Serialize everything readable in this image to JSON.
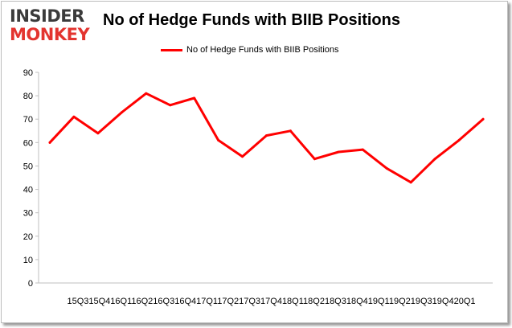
{
  "logo": {
    "line1": "INSIDER",
    "line2": "MONKEY"
  },
  "chart_data": {
    "type": "line",
    "title": "No of Hedge Funds with BIIB Positions",
    "xlabel": "",
    "ylabel": "",
    "legend": "top-center",
    "grid": false,
    "ylim": [
      0,
      90
    ],
    "yticks": [
      0,
      10,
      20,
      30,
      40,
      50,
      60,
      70,
      80,
      90
    ],
    "x_tick_text": "15Q315Q416Q116Q216Q316Q417Q117Q217Q317Q418Q118Q218Q318Q419Q119Q219Q319Q420Q1",
    "categories": [
      "15Q3",
      "15Q4",
      "16Q1",
      "16Q2",
      "16Q3",
      "16Q4",
      "17Q1",
      "17Q2",
      "17Q3",
      "17Q4",
      "18Q1",
      "18Q2",
      "18Q3",
      "18Q4",
      "19Q1",
      "19Q2",
      "19Q3",
      "19Q4",
      "20Q1"
    ],
    "series": [
      {
        "name": "No of Hedge Funds with BIIB Positions",
        "color": "#ff0000",
        "values": [
          60,
          71,
          64,
          73,
          81,
          76,
          79,
          61,
          54,
          63,
          65,
          53,
          56,
          57,
          49,
          43,
          53,
          61,
          70
        ]
      }
    ]
  }
}
